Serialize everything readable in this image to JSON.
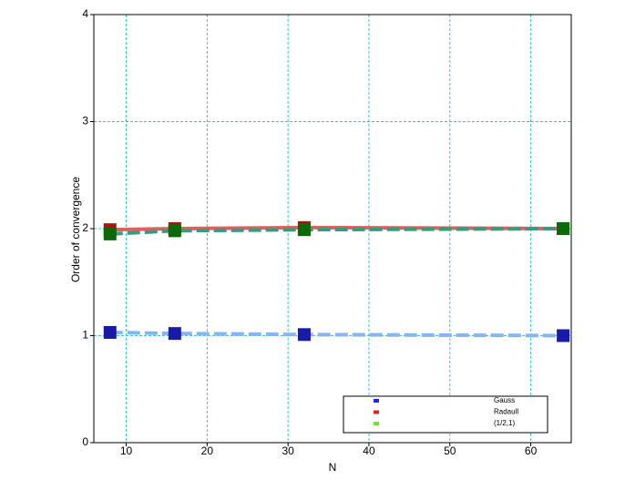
{
  "chart_data": {
    "type": "line",
    "xlabel": "N",
    "ylabel": "Order of convergence",
    "x": [
      8,
      16,
      32,
      64
    ],
    "series": [
      {
        "name": "Gauss",
        "color": "#2424e0",
        "marker_color": "#1a1aa8",
        "line_color": "#86b4f4",
        "values": [
          1.03,
          1.02,
          1.01,
          1.0
        ]
      },
      {
        "name": "Radaull",
        "color": "#e02020",
        "marker_color": "#b01010",
        "line_color": "#e06060",
        "values": [
          1.99,
          2.0,
          2.01,
          2.0
        ]
      },
      {
        "name": "(1/2,1)",
        "color": "#60f020",
        "marker_color": "#0a6a0a",
        "line_color": "#3a9a80",
        "values": [
          1.95,
          1.98,
          1.99,
          2.0
        ]
      }
    ],
    "xlim": [
      6,
      65
    ],
    "xticks": [
      10,
      20,
      30,
      40,
      50,
      60
    ],
    "ylim": [
      0,
      4
    ],
    "yticks": [
      0,
      1,
      2,
      3,
      4
    ],
    "grid": true,
    "legend": "lower right"
  }
}
